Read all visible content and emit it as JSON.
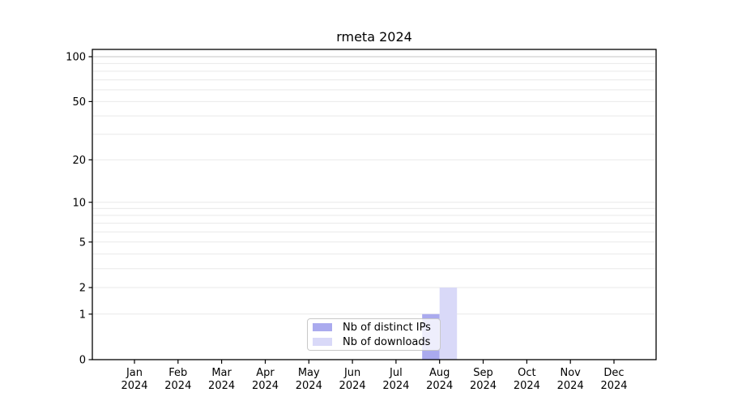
{
  "chart_data": {
    "type": "bar",
    "title": "rmeta 2024",
    "categories": [
      {
        "month": "Jan",
        "year": "2024"
      },
      {
        "month": "Feb",
        "year": "2024"
      },
      {
        "month": "Mar",
        "year": "2024"
      },
      {
        "month": "Apr",
        "year": "2024"
      },
      {
        "month": "May",
        "year": "2024"
      },
      {
        "month": "Jun",
        "year": "2024"
      },
      {
        "month": "Jul",
        "year": "2024"
      },
      {
        "month": "Aug",
        "year": "2024"
      },
      {
        "month": "Sep",
        "year": "2024"
      },
      {
        "month": "Oct",
        "year": "2024"
      },
      {
        "month": "Nov",
        "year": "2024"
      },
      {
        "month": "Dec",
        "year": "2024"
      }
    ],
    "series": [
      {
        "name": "Nb of distinct IPs",
        "color": "#aaaaee",
        "values": [
          0,
          0,
          0,
          0,
          0,
          0,
          0,
          1,
          0,
          0,
          0,
          0
        ]
      },
      {
        "name": "Nb of downloads",
        "color": "#d9d9f8",
        "values": [
          0,
          0,
          0,
          0,
          0,
          0,
          0,
          2,
          0,
          0,
          0,
          0
        ]
      }
    ],
    "xlabel": "",
    "ylabel": "",
    "y_axis": {
      "scale": "log1p",
      "tick_values": [
        0,
        1,
        2,
        5,
        10,
        20,
        50,
        100
      ],
      "minor_gridline_values": [
        3,
        4,
        6,
        7,
        8,
        9,
        30,
        40,
        60,
        70,
        80,
        90
      ],
      "ylim": [
        0,
        112
      ]
    },
    "legend": {
      "position": "inside lower center",
      "entries_from_series": true
    },
    "colors": {
      "grid_minor": "#e9e9e9",
      "grid_top": "#c6c6c6",
      "axis": "#000000",
      "background": "#ffffff"
    }
  }
}
